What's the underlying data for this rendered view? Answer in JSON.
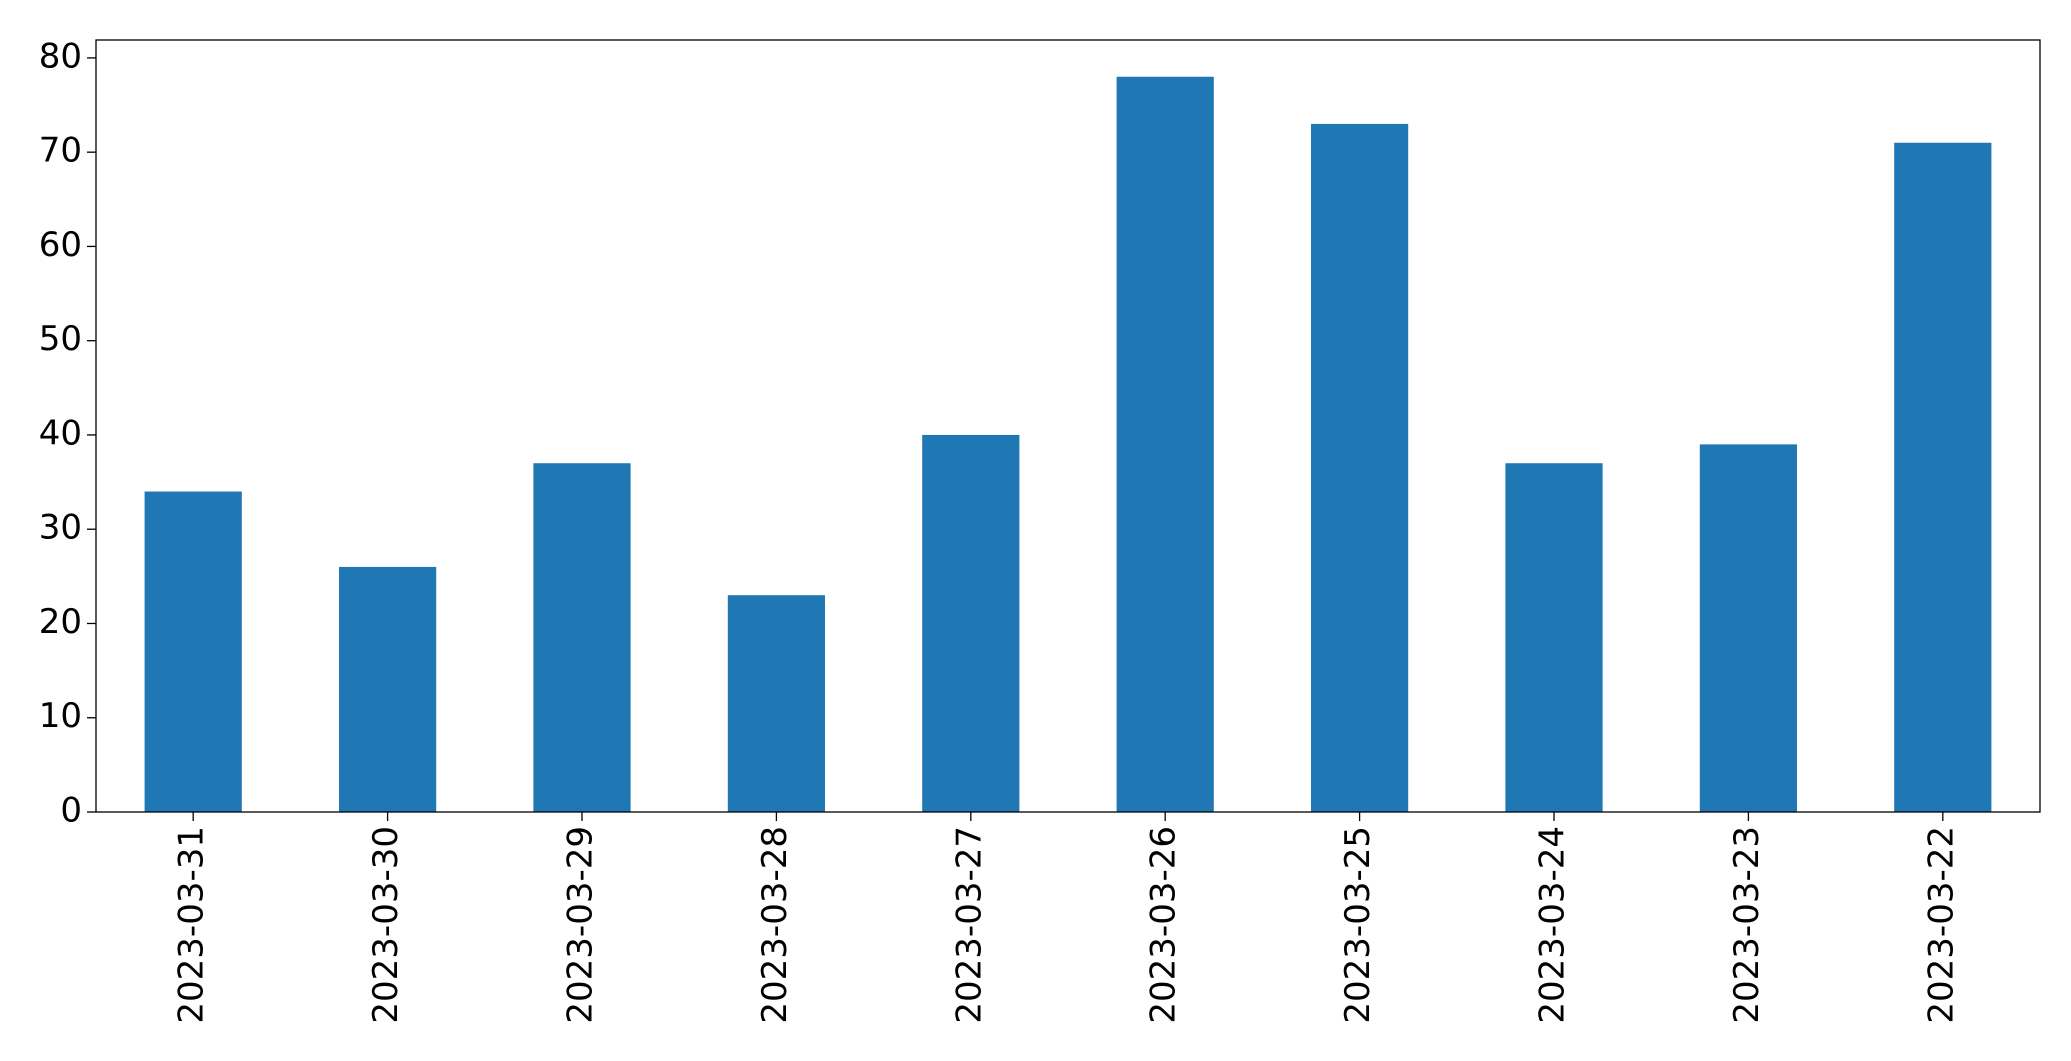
{
  "chart_data": {
    "type": "bar",
    "categories": [
      "2023-03-31",
      "2023-03-30",
      "2023-03-29",
      "2023-03-28",
      "2023-03-27",
      "2023-03-26",
      "2023-03-25",
      "2023-03-24",
      "2023-03-23",
      "2023-03-22"
    ],
    "values": [
      34,
      26,
      37,
      23,
      40,
      78,
      73,
      37,
      39,
      71
    ],
    "color": "#1f77b4",
    "ylim": [
      0,
      81.9
    ],
    "yticks": [
      0,
      10,
      20,
      30,
      40,
      50,
      60,
      70,
      80
    ],
    "grid": false
  }
}
